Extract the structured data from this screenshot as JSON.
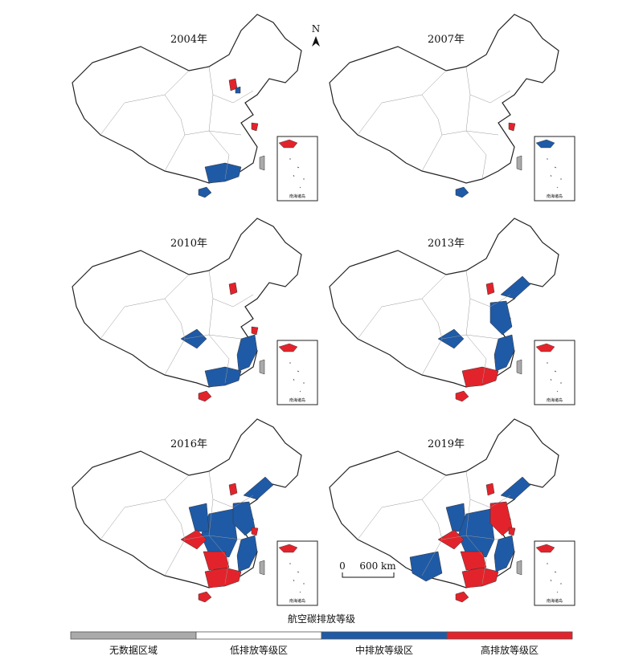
{
  "north_label": "N",
  "panels": [
    {
      "title": "2004年",
      "inset_label": "南海诸岛"
    },
    {
      "title": "2007年",
      "inset_label": "南海诸岛"
    },
    {
      "title": "2010年",
      "inset_label": "南海诸岛"
    },
    {
      "title": "2013年",
      "inset_label": "南海诸岛"
    },
    {
      "title": "2016年",
      "inset_label": "南海诸岛"
    },
    {
      "title": "2019年",
      "inset_label": "南海诸岛"
    }
  ],
  "scale_bar": {
    "start": "0",
    "end": "600 km"
  },
  "legend": {
    "title": "航空碳排放等级",
    "items": [
      "无数据区域",
      "低排放等级区",
      "中排放等级区",
      "高排放等级区"
    ]
  }
}
